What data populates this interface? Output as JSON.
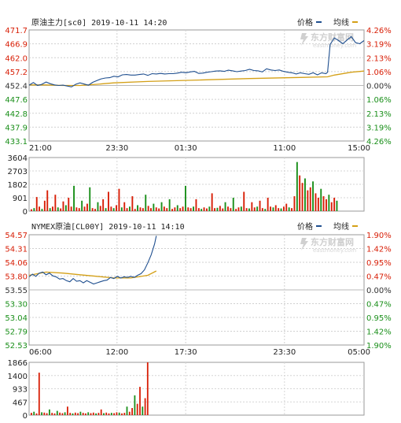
{
  "chart_data": [
    {
      "type": "line",
      "title": "原油主力[sc0]  2019-10-11  14:20",
      "legend": [
        {
          "name": "价格",
          "color": "#1f4f8f"
        },
        {
          "name": "均线",
          "color": "#d4a017"
        }
      ],
      "watermark": {
        "brand": "东方财富网",
        "sub": "eastmoney.com"
      },
      "y_ticks": [
        "471.7",
        "466.9",
        "462.0",
        "457.2",
        "452.4",
        "447.6",
        "442.8",
        "437.9",
        "433.1"
      ],
      "pct_ticks": [
        "4.26%",
        "3.19%",
        "2.13%",
        "1.06%",
        "0.00%",
        "1.06%",
        "2.13%",
        "3.19%",
        "4.26%"
      ],
      "ylim": [
        433.1,
        471.7
      ],
      "x_ticks": [
        "21:00",
        "23:30",
        "01:30",
        "11:00",
        "15:00"
      ],
      "price": {
        "x": [
          0,
          5,
          10,
          15,
          20,
          25,
          30,
          35,
          40,
          45,
          50,
          55,
          60,
          65,
          70,
          75,
          80,
          85,
          90,
          95,
          100,
          105,
          110,
          115,
          120,
          125,
          130,
          135,
          140,
          145,
          150,
          155,
          160,
          165,
          170,
          175,
          180,
          185,
          190,
          195,
          200,
          205,
          210,
          215,
          220,
          225,
          230,
          235,
          240,
          245,
          250,
          255,
          260,
          265,
          270,
          275,
          280,
          285,
          290,
          295,
          300,
          305,
          310,
          315,
          320,
          325,
          330,
          335,
          340,
          345,
          350,
          352,
          355,
          360,
          365,
          370,
          375,
          380,
          385,
          390,
          395
        ],
        "values": [
          452.5,
          453.4,
          452.4,
          452.8,
          453.6,
          453.0,
          452.6,
          452.4,
          452.5,
          452.2,
          451.9,
          452.8,
          453.3,
          452.9,
          452.5,
          453.5,
          454.1,
          454.7,
          455.0,
          455.1,
          455.6,
          455.4,
          456.1,
          456.2,
          456.0,
          456.0,
          456.2,
          456.4,
          455.9,
          456.5,
          456.4,
          456.6,
          456.4,
          456.5,
          456.5,
          456.7,
          457.0,
          456.8,
          457.1,
          457.3,
          456.6,
          456.7,
          457.0,
          457.2,
          457.4,
          457.5,
          457.3,
          457.7,
          457.5,
          457.2,
          457.4,
          457.6,
          458.0,
          457.6,
          457.5,
          457.1,
          458.2,
          457.8,
          457.6,
          457.8,
          457.3,
          457.0,
          456.8,
          456.4,
          456.8,
          456.5,
          456.3,
          456.8,
          456.1,
          456.8,
          456.5,
          457.0,
          466.7,
          468.9,
          468.0,
          466.9,
          468.2,
          469.4,
          467.3,
          466.9,
          468.0
        ]
      },
      "avg": {
        "x": [
          0,
          20,
          40,
          60,
          80,
          100,
          140,
          200,
          260,
          320,
          352,
          360,
          380,
          395
        ],
        "values": [
          452.6,
          452.6,
          452.4,
          452.4,
          452.8,
          453.3,
          453.8,
          454.3,
          454.8,
          455.2,
          455.4,
          456.0,
          457.0,
          457.4
        ]
      }
    },
    {
      "type": "bar",
      "title": "",
      "y_ticks": [
        "3604",
        "2703",
        "1802",
        "901",
        "0"
      ],
      "ylim": [
        0,
        3604
      ],
      "volume": [
        120,
        200,
        950,
        300,
        150,
        700,
        1400,
        200,
        300,
        1100,
        250,
        180,
        650,
        400,
        900,
        300,
        1700,
        250,
        200,
        700,
        300,
        500,
        1600,
        200,
        150,
        600,
        350,
        800,
        200,
        1300,
        300,
        200,
        400,
        1500,
        250,
        600,
        200,
        300,
        1000,
        150,
        400,
        250,
        200,
        1100,
        350,
        200,
        500,
        250,
        180,
        600,
        300,
        200,
        800,
        150,
        250,
        400,
        200,
        300,
        1700,
        250,
        200,
        300,
        800,
        200,
        150,
        250,
        180,
        300,
        1200,
        200,
        220,
        350,
        180,
        600,
        300,
        200,
        900,
        150,
        250,
        300,
        1300,
        200,
        180,
        600,
        250,
        300,
        700,
        200,
        150,
        900,
        300,
        250,
        400,
        200,
        180,
        300,
        500,
        250,
        200,
        1000,
        3300,
        2400,
        1900,
        2200,
        1400,
        1600,
        2000,
        1200,
        900,
        1500,
        1000,
        800,
        1100,
        600,
        900,
        700
      ]
    },
    {
      "type": "line",
      "title": "NYMEX原油[CL00Y]  2019-10-11  14:10",
      "legend": [
        {
          "name": "价格",
          "color": "#1f4f8f"
        },
        {
          "name": "均线",
          "color": "#d4a017"
        }
      ],
      "watermark": {
        "brand": "东方财富网",
        "sub": "eastmoney.com"
      },
      "y_ticks": [
        "54.57",
        "54.31",
        "54.06",
        "53.80",
        "53.55",
        "53.30",
        "53.04",
        "52.79",
        "52.53"
      ],
      "pct_ticks": [
        "1.90%",
        "1.42%",
        "0.95%",
        "0.47%",
        "0.00%",
        "0.47%",
        "0.95%",
        "1.42%",
        "1.90%"
      ],
      "ylim": [
        52.53,
        54.57
      ],
      "x_ticks": [
        "06:00",
        "12:00",
        "17:30",
        "23:30",
        "05:00"
      ],
      "price": {
        "x": [
          0,
          4,
          8,
          12,
          16,
          20,
          24,
          28,
          32,
          36,
          40,
          44,
          48,
          52,
          56,
          60,
          64,
          68,
          72,
          76,
          80,
          84,
          88,
          92,
          96,
          100,
          104,
          108,
          112,
          116,
          120,
          124,
          128,
          132,
          136,
          140,
          144,
          148,
          150
        ],
        "values": [
          53.79,
          53.84,
          53.8,
          53.86,
          53.88,
          53.83,
          53.86,
          53.81,
          53.79,
          53.75,
          53.76,
          53.72,
          53.7,
          53.76,
          53.71,
          53.72,
          53.68,
          53.72,
          53.69,
          53.66,
          53.68,
          53.7,
          53.72,
          53.73,
          53.78,
          53.76,
          53.8,
          53.77,
          53.79,
          53.78,
          53.8,
          53.78,
          53.82,
          53.85,
          53.92,
          54.05,
          54.2,
          54.4,
          54.55
        ]
      },
      "avg": {
        "x": [
          0,
          20,
          40,
          60,
          80,
          100,
          120,
          140,
          150
        ],
        "values": [
          53.82,
          53.88,
          53.86,
          53.83,
          53.8,
          53.77,
          53.77,
          53.82,
          53.9
        ]
      }
    },
    {
      "type": "bar",
      "title": "",
      "y_ticks": [
        "1866",
        "1400",
        "933",
        "467",
        "0"
      ],
      "ylim": [
        0,
        1866
      ],
      "volume": [
        80,
        120,
        60,
        1500,
        100,
        90,
        70,
        200,
        80,
        60,
        150,
        90,
        70,
        100,
        300,
        80,
        60,
        90,
        70,
        120,
        80,
        60,
        100,
        70,
        90,
        60,
        80,
        200,
        70,
        90,
        60,
        80,
        70,
        100,
        90,
        60,
        80,
        300,
        120,
        250,
        700,
        400,
        1000,
        300,
        600,
        1866
      ]
    }
  ]
}
